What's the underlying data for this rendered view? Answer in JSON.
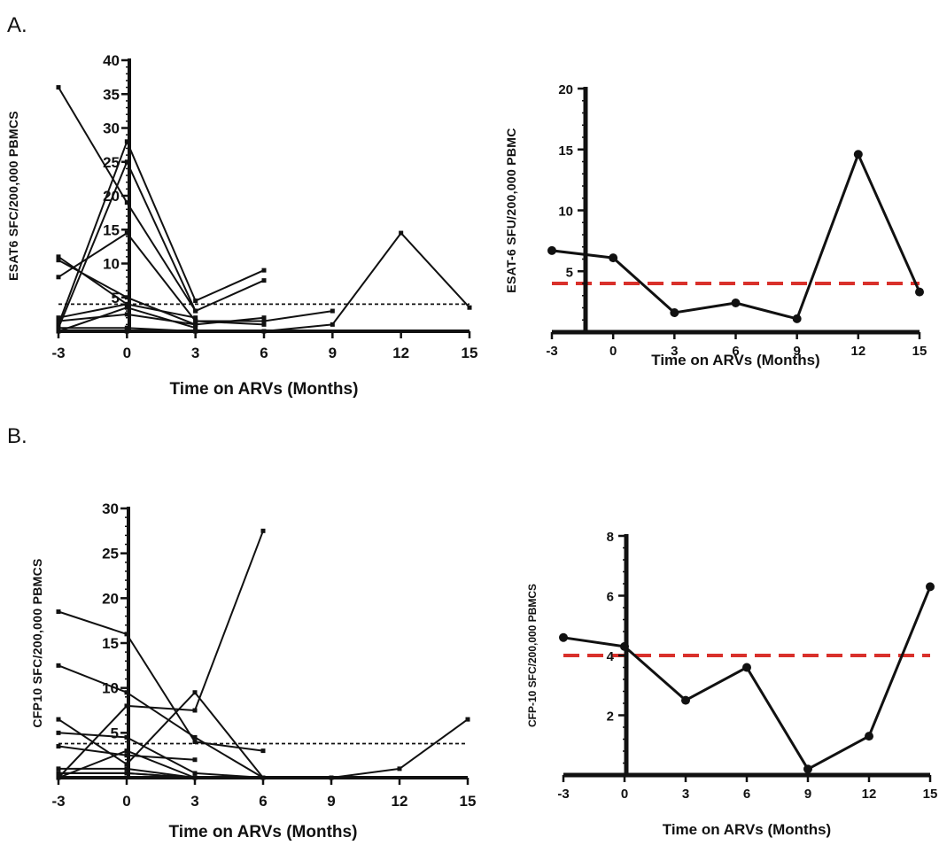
{
  "panels": {
    "a": "A.",
    "b": "B."
  },
  "chart_data": [
    {
      "id": "a1",
      "type": "line",
      "ylabel": "ESAT6 SFC/200,000 PBMCS",
      "xlabel": "Time on ARVs (Months)",
      "xlim": [
        -3,
        15
      ],
      "ylim": [
        0,
        40
      ],
      "xticks": [
        -3,
        0,
        3,
        6,
        9,
        12,
        15
      ],
      "yticks": [
        5,
        10,
        15,
        20,
        25,
        30,
        35,
        40
      ],
      "ytick_labels": [
        "5",
        "10",
        "15",
        "20",
        "25",
        "30",
        "35",
        "40"
      ],
      "threshold": 4,
      "threshold_style": "dotted",
      "series": [
        {
          "x": [
            -3,
            0,
            3
          ],
          "y": [
            36,
            19,
            3
          ]
        },
        {
          "x": [
            -3,
            0
          ],
          "y": [
            11,
            4
          ]
        },
        {
          "x": [
            -3,
            0,
            3,
            6
          ],
          "y": [
            8,
            14.5,
            1.5,
            1
          ]
        },
        {
          "x": [
            -3,
            0,
            3,
            6
          ],
          "y": [
            1,
            28,
            4.5,
            9
          ]
        },
        {
          "x": [
            -3,
            0,
            3,
            6
          ],
          "y": [
            0.5,
            25,
            3,
            7.5
          ]
        },
        {
          "x": [
            -3,
            0,
            3
          ],
          "y": [
            2,
            4,
            2
          ]
        },
        {
          "x": [
            -3,
            0,
            3
          ],
          "y": [
            10.5,
            5,
            1
          ]
        },
        {
          "x": [
            -3,
            0,
            3
          ],
          "y": [
            0,
            3.5,
            0.5
          ]
        },
        {
          "x": [
            -3,
            0,
            3,
            6
          ],
          "y": [
            1.5,
            2.5,
            1,
            2
          ]
        },
        {
          "x": [
            -3,
            0,
            3
          ],
          "y": [
            0.5,
            0.5,
            0
          ]
        },
        {
          "x": [
            0,
            3,
            6
          ],
          "y": [
            0,
            0,
            0
          ]
        },
        {
          "x": [
            3,
            6,
            9
          ],
          "y": [
            1.5,
            1.5,
            3
          ]
        },
        {
          "x": [
            0,
            3,
            6,
            9,
            12,
            15
          ],
          "y": [
            0,
            0,
            0,
            1,
            14.5,
            3.5
          ]
        }
      ]
    },
    {
      "id": "a2",
      "type": "line",
      "ylabel": "ESAT-6 SFU/200,000 PBMC",
      "xlabel": "Time on ARVs (Months)",
      "xlim": [
        -3,
        15
      ],
      "ylim": [
        0,
        20
      ],
      "xticks": [
        -3,
        0,
        3,
        6,
        9,
        12,
        15
      ],
      "yticks": [
        5,
        10,
        15,
        20
      ],
      "ytick_labels": [
        "5",
        "10",
        "15",
        "20"
      ],
      "threshold": 4,
      "threshold_style": "dashed",
      "threshold_color": "#d9302b",
      "series": [
        {
          "x": [
            -3,
            0,
            3,
            6,
            9,
            12,
            15
          ],
          "y": [
            6.7,
            6.1,
            1.6,
            2.4,
            1.1,
            14.6,
            3.3
          ]
        }
      ]
    },
    {
      "id": "b1",
      "type": "line",
      "ylabel": "CFP10 SFC/200,000 PBMCS",
      "xlabel": "Time on ARVs (Months)",
      "xlim": [
        -3,
        15
      ],
      "ylim": [
        0,
        30
      ],
      "xticks": [
        -3,
        0,
        3,
        6,
        9,
        12,
        15
      ],
      "yticks": [
        5,
        10,
        15,
        20,
        25,
        30
      ],
      "ytick_labels": [
        "5",
        "10",
        "15",
        "20",
        "25",
        "30"
      ],
      "threshold": 3.8,
      "threshold_style": "dotted",
      "series": [
        {
          "x": [
            -3,
            0,
            3,
            6
          ],
          "y": [
            18.5,
            16,
            4,
            3
          ]
        },
        {
          "x": [
            -3,
            0,
            3,
            6
          ],
          "y": [
            12.5,
            9.5,
            4.5,
            0
          ]
        },
        {
          "x": [
            -3,
            0,
            3,
            6
          ],
          "y": [
            6.5,
            1.5,
            9.5,
            0
          ]
        },
        {
          "x": [
            -3,
            0,
            3,
            6
          ],
          "y": [
            5,
            4.5,
            0.5,
            0
          ]
        },
        {
          "x": [
            -3,
            0,
            3,
            6
          ],
          "y": [
            0,
            8,
            7.5,
            27.5
          ]
        },
        {
          "x": [
            -3,
            0,
            3
          ],
          "y": [
            3.5,
            2.5,
            2
          ]
        },
        {
          "x": [
            -3,
            0,
            3
          ],
          "y": [
            1,
            1,
            0
          ]
        },
        {
          "x": [
            -3,
            0,
            3
          ],
          "y": [
            0.5,
            0.5,
            0
          ]
        },
        {
          "x": [
            -3,
            0,
            3
          ],
          "y": [
            0,
            3,
            0
          ]
        },
        {
          "x": [
            -3,
            0,
            3,
            6,
            9,
            12,
            15
          ],
          "y": [
            0.5,
            0.5,
            0,
            0,
            0,
            1,
            6.5
          ]
        }
      ]
    },
    {
      "id": "b2",
      "type": "line",
      "ylabel": "CFP-10 SFC/200,000 PBMCS",
      "xlabel": "Time on ARVs (Months)",
      "xlim": [
        -3,
        15
      ],
      "ylim": [
        0,
        8
      ],
      "xticks": [
        -3,
        0,
        3,
        6,
        9,
        12,
        15
      ],
      "yticks": [
        2,
        4,
        6,
        8
      ],
      "ytick_labels": [
        "2",
        "4",
        "6",
        "8"
      ],
      "threshold": 4,
      "threshold_style": "dashed",
      "threshold_color": "#d9302b",
      "series": [
        {
          "x": [
            -3,
            0,
            3,
            6,
            9,
            12,
            15
          ],
          "y": [
            4.6,
            4.3,
            2.5,
            3.6,
            0.2,
            1.3,
            6.3
          ]
        }
      ]
    }
  ]
}
